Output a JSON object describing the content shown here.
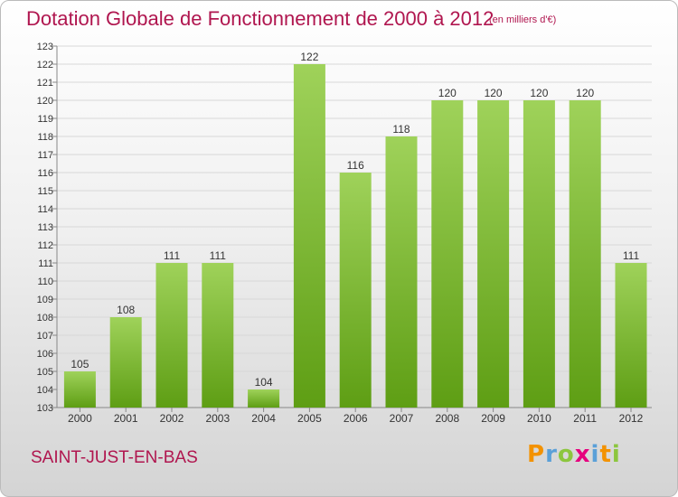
{
  "title": "Dotation Globale de Fonctionnement de 2000 à 2012",
  "unit_note": "(en milliers d'€)",
  "commune": "SAINT-JUST-EN-BAS",
  "logo": {
    "letters": [
      "P",
      "r",
      "o",
      "x",
      "i",
      "t",
      "i"
    ],
    "colors": [
      "#f39200",
      "#5aa0d8",
      "#8cc63e",
      "#e6007e",
      "#5aa0d8",
      "#f39200",
      "#8cc63e"
    ]
  },
  "colors": {
    "bar_light": "#9fd25a",
    "bar_dark": "#5e9e14",
    "title": "#b0164f",
    "grid": "#d8d8d8"
  },
  "chart_data": {
    "type": "bar",
    "categories": [
      "2000",
      "2001",
      "2002",
      "2003",
      "2004",
      "2005",
      "2006",
      "2007",
      "2008",
      "2009",
      "2010",
      "2011",
      "2012"
    ],
    "values": [
      105,
      108,
      111,
      111,
      104,
      122,
      116,
      118,
      120,
      120,
      120,
      120,
      111
    ],
    "data_labels": [
      "105",
      "108",
      "111",
      "111",
      "104",
      "122",
      "116",
      "118",
      "120",
      "120",
      "120",
      "120",
      "111"
    ],
    "yticks": [
      "103",
      "104",
      "105",
      "106",
      "107",
      "108",
      "109",
      "110",
      "111",
      "112",
      "113",
      "114",
      "115",
      "116",
      "117",
      "118",
      "119",
      "120",
      "121",
      "122",
      "123"
    ],
    "ylim": [
      103,
      123
    ],
    "grid": true
  }
}
